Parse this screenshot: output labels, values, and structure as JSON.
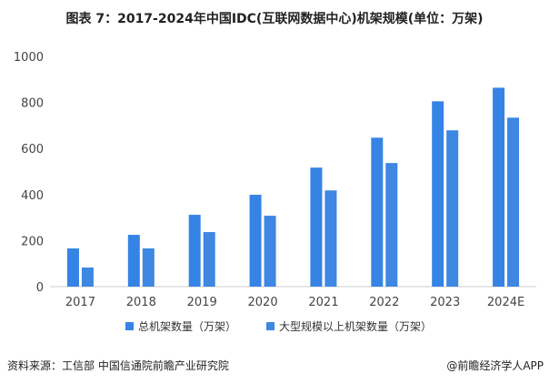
{
  "chart_data": {
    "type": "bar",
    "title": "图表 7：2017-2024年中国IDC(互联网数据中心)机架规模(单位：万架)",
    "categories": [
      "2017",
      "2018",
      "2019",
      "2020",
      "2021",
      "2022",
      "2023",
      "2024E"
    ],
    "series": [
      {
        "name": "总机架数量（万架）",
        "color": "#3683E6",
        "values": [
          166,
          225,
          312,
          399,
          517,
          647,
          805,
          864
        ]
      },
      {
        "name": "大型规模以上机架数量（万架）",
        "color": "#3E87E2",
        "values": [
          83,
          166,
          237,
          308,
          418,
          537,
          679,
          734
        ]
      }
    ],
    "ylim": [
      0,
      1000
    ],
    "yticks": [
      0,
      200,
      400,
      600,
      800,
      1000
    ],
    "grid": false,
    "legend": "bottom"
  },
  "source": "资料来源：工信部 中国信通院前瞻产业研究院",
  "brand": "@前瞻经济学人APP"
}
